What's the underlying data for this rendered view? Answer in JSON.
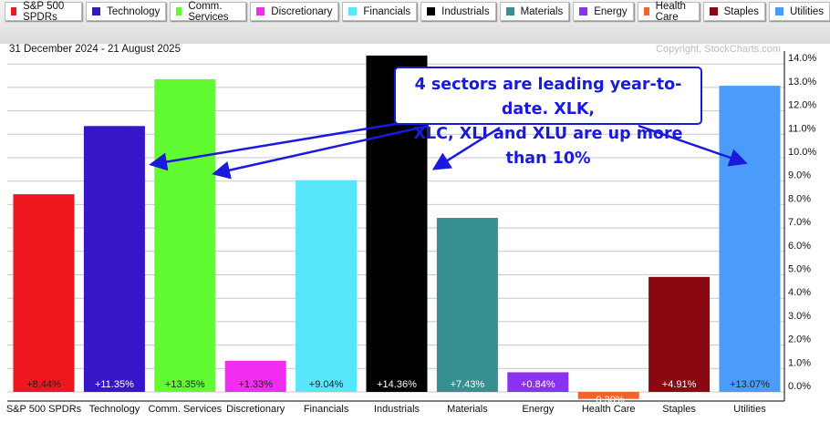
{
  "chart_data": {
    "type": "bar",
    "date_range": "31 December 2024 - 21 August 2025",
    "copyright": "Copyright, StockCharts.com",
    "categories": [
      "S&P 500 SPDRs",
      "Technology",
      "Comm. Services",
      "Discretionary",
      "Financials",
      "Industrials",
      "Materials",
      "Energy",
      "Health Care",
      "Staples",
      "Utilities"
    ],
    "values": [
      8.44,
      11.35,
      13.35,
      1.33,
      9.04,
      14.36,
      7.43,
      0.84,
      -0.3,
      4.91,
      13.07
    ],
    "labels": [
      "+8.44%",
      "+11.35%",
      "+13.35%",
      "+1.33%",
      "+9.04%",
      "+14.36%",
      "+7.43%",
      "+0.84%",
      "-0.30%",
      "+4.91%",
      "+13.07%"
    ],
    "colors": [
      "#f0161e",
      "#3616c8",
      "#62fb32",
      "#f22cf0",
      "#58e6fb",
      "#000000",
      "#35908f",
      "#8b32ee",
      "#f0642c",
      "#8a0812",
      "#4b9bfb"
    ],
    "label_colors": [
      "#222",
      "#fff",
      "#222",
      "#222",
      "#222",
      "#fff",
      "#fff",
      "#fff",
      "#fff",
      "#fff",
      "#222"
    ],
    "yticks": [
      "0.0%",
      "1.0%",
      "2.0%",
      "3.0%",
      "4.0%",
      "5.0%",
      "6.0%",
      "7.0%",
      "8.0%",
      "9.0%",
      "10.0%",
      "11.0%",
      "12.0%",
      "13.0%",
      "14.0%"
    ],
    "ylim": [
      -0.35,
      14.6
    ],
    "grid": true,
    "legend_position": "top",
    "annotation": {
      "text": "4 sectors are leading year-to-date. XLK, XLC, XLI and XLU are up more than 10%",
      "line1": "4 sectors are leading year-to-date. XLK,",
      "line2": "XLC, XLI and XLU are up more than 10%",
      "color": "#1a1adf"
    }
  }
}
